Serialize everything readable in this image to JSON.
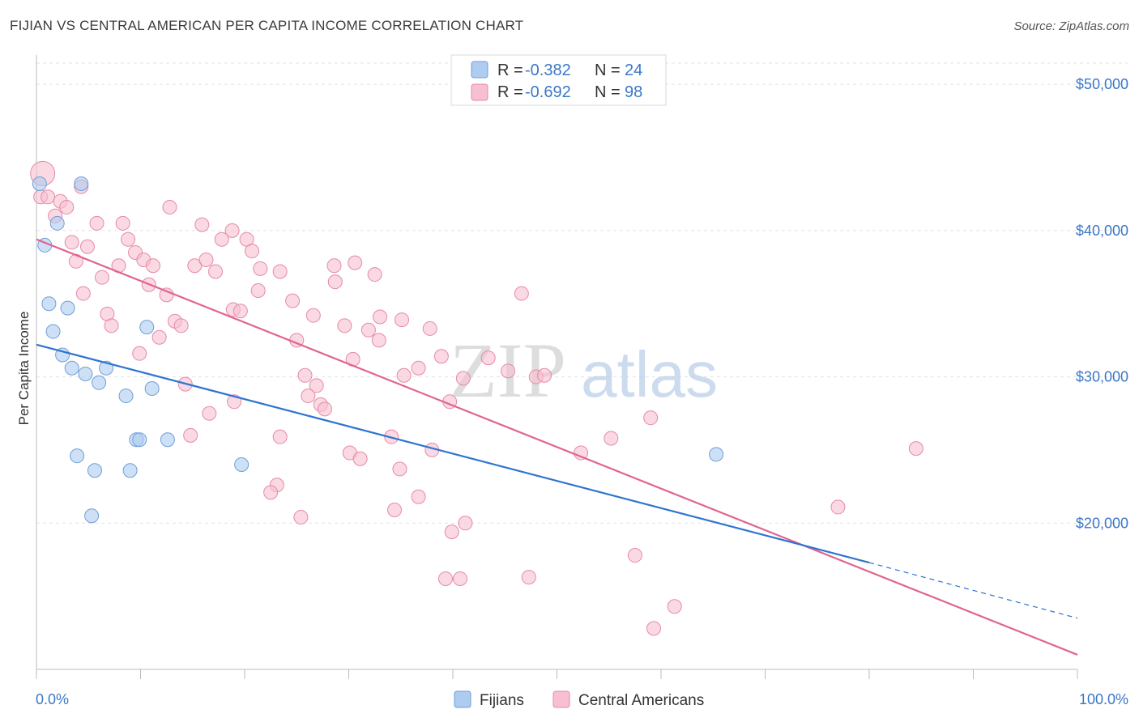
{
  "header": {
    "title": "FIJIAN VS CENTRAL AMERICAN PER CAPITA INCOME CORRELATION CHART",
    "source": "Source: ZipAtlas.com"
  },
  "watermark": {
    "zip": "ZIP",
    "atlas": "atlas"
  },
  "legend": {
    "rows": [
      {
        "r_label": "R =",
        "r_value": "-0.382",
        "n_label": "N =",
        "n_value": "24",
        "color": "#aecbf0",
        "stroke": "#6f9fd8"
      },
      {
        "r_label": "R =",
        "r_value": "-0.692",
        "n_label": "N =",
        "n_value": "98",
        "color": "#f7bfd1",
        "stroke": "#e58aa8"
      }
    ]
  },
  "bottom_legend": [
    "Fijians",
    "Central Americans"
  ],
  "chart_data": {
    "type": "scatter",
    "title": "FIJIAN VS CENTRAL AMERICAN PER CAPITA INCOME CORRELATION CHART",
    "ylabel": "Per Capita Income",
    "xlabel": "",
    "xlim": [
      0,
      100
    ],
    "ylim": [
      10000,
      52000
    ],
    "x_tick_labels": [
      "0.0%",
      "100.0%"
    ],
    "y_ticks": [
      20000,
      30000,
      40000,
      50000
    ],
    "y_tick_labels": [
      "$20,000",
      "$30,000",
      "$40,000",
      "$50,000"
    ],
    "grid": true,
    "legend_position": "top-center",
    "series": [
      {
        "name": "Fijians",
        "color": "#aecbf0",
        "stroke": "#6f9fd8",
        "line_color": "#2f74d0",
        "trend": {
          "x0": 0,
          "y0": 32200,
          "x1": 80,
          "y1": 17300,
          "dash_to_x": 100,
          "dash_to_y": 13500
        },
        "points": [
          [
            0.3,
            43200
          ],
          [
            4.3,
            43200
          ],
          [
            2.0,
            40500
          ],
          [
            0.8,
            39000
          ],
          [
            1.2,
            35000
          ],
          [
            3.0,
            34700
          ],
          [
            1.6,
            33100
          ],
          [
            10.6,
            33400
          ],
          [
            2.5,
            31500
          ],
          [
            3.4,
            30600
          ],
          [
            4.7,
            30200
          ],
          [
            6.7,
            30600
          ],
          [
            6.0,
            29600
          ],
          [
            11.1,
            29200
          ],
          [
            8.6,
            28700
          ],
          [
            9.6,
            25700
          ],
          [
            9.9,
            25700
          ],
          [
            12.6,
            25700
          ],
          [
            3.9,
            24600
          ],
          [
            5.6,
            23600
          ],
          [
            9.0,
            23600
          ],
          [
            19.7,
            24000
          ],
          [
            5.3,
            20500
          ],
          [
            65.3,
            24700
          ]
        ]
      },
      {
        "name": "Central Americans",
        "color": "#f7bfd1",
        "stroke": "#e58aa8",
        "line_color": "#e0658f",
        "trend": {
          "x0": 0,
          "y0": 39400,
          "x1": 100,
          "y1": 11000
        },
        "points": [
          [
            0.6,
            43900
          ],
          [
            0.4,
            42300
          ],
          [
            1.1,
            42300
          ],
          [
            2.3,
            42000
          ],
          [
            4.3,
            43000
          ],
          [
            2.9,
            41600
          ],
          [
            1.8,
            41000
          ],
          [
            12.8,
            41600
          ],
          [
            5.8,
            40500
          ],
          [
            8.3,
            40500
          ],
          [
            15.9,
            40400
          ],
          [
            18.8,
            40000
          ],
          [
            3.4,
            39200
          ],
          [
            4.9,
            38900
          ],
          [
            8.8,
            39400
          ],
          [
            17.8,
            39400
          ],
          [
            20.2,
            39400
          ],
          [
            9.5,
            38500
          ],
          [
            20.7,
            38600
          ],
          [
            3.8,
            37900
          ],
          [
            7.9,
            37600
          ],
          [
            10.3,
            38000
          ],
          [
            11.2,
            37600
          ],
          [
            15.2,
            37600
          ],
          [
            16.3,
            38000
          ],
          [
            17.2,
            37200
          ],
          [
            21.5,
            37400
          ],
          [
            23.4,
            37200
          ],
          [
            28.6,
            37600
          ],
          [
            30.6,
            37800
          ],
          [
            32.5,
            37000
          ],
          [
            6.3,
            36800
          ],
          [
            10.8,
            36300
          ],
          [
            21.3,
            35900
          ],
          [
            4.5,
            35700
          ],
          [
            12.5,
            35600
          ],
          [
            24.6,
            35200
          ],
          [
            46.6,
            35700
          ],
          [
            28.7,
            36500
          ],
          [
            18.9,
            34600
          ],
          [
            19.6,
            34500
          ],
          [
            6.8,
            34300
          ],
          [
            26.6,
            34200
          ],
          [
            33.0,
            34100
          ],
          [
            35.1,
            33900
          ],
          [
            7.2,
            33500
          ],
          [
            13.3,
            33800
          ],
          [
            13.9,
            33500
          ],
          [
            29.6,
            33500
          ],
          [
            31.9,
            33200
          ],
          [
            37.8,
            33300
          ],
          [
            11.8,
            32700
          ],
          [
            25.0,
            32500
          ],
          [
            32.9,
            32500
          ],
          [
            9.9,
            31600
          ],
          [
            30.4,
            31200
          ],
          [
            38.9,
            31400
          ],
          [
            43.4,
            31300
          ],
          [
            36.7,
            30600
          ],
          [
            45.3,
            30400
          ],
          [
            25.8,
            30100
          ],
          [
            35.3,
            30100
          ],
          [
            41.0,
            29900
          ],
          [
            48.0,
            30000
          ],
          [
            48.8,
            30100
          ],
          [
            14.3,
            29500
          ],
          [
            26.9,
            29400
          ],
          [
            26.1,
            28700
          ],
          [
            19.0,
            28300
          ],
          [
            27.3,
            28100
          ],
          [
            27.7,
            27800
          ],
          [
            39.7,
            28300
          ],
          [
            16.6,
            27500
          ],
          [
            59.0,
            27200
          ],
          [
            14.8,
            26000
          ],
          [
            23.4,
            25900
          ],
          [
            34.1,
            25900
          ],
          [
            55.2,
            25800
          ],
          [
            30.1,
            24800
          ],
          [
            31.1,
            24400
          ],
          [
            38.0,
            25000
          ],
          [
            52.3,
            24800
          ],
          [
            84.5,
            25100
          ],
          [
            34.9,
            23700
          ],
          [
            23.1,
            22600
          ],
          [
            22.5,
            22100
          ],
          [
            36.7,
            21800
          ],
          [
            34.4,
            20900
          ],
          [
            25.4,
            20400
          ],
          [
            41.2,
            20000
          ],
          [
            39.9,
            19400
          ],
          [
            77.0,
            21100
          ],
          [
            57.5,
            17800
          ],
          [
            39.3,
            16200
          ],
          [
            40.7,
            16200
          ],
          [
            47.3,
            16300
          ],
          [
            61.3,
            14300
          ],
          [
            59.3,
            12800
          ]
        ]
      }
    ]
  }
}
